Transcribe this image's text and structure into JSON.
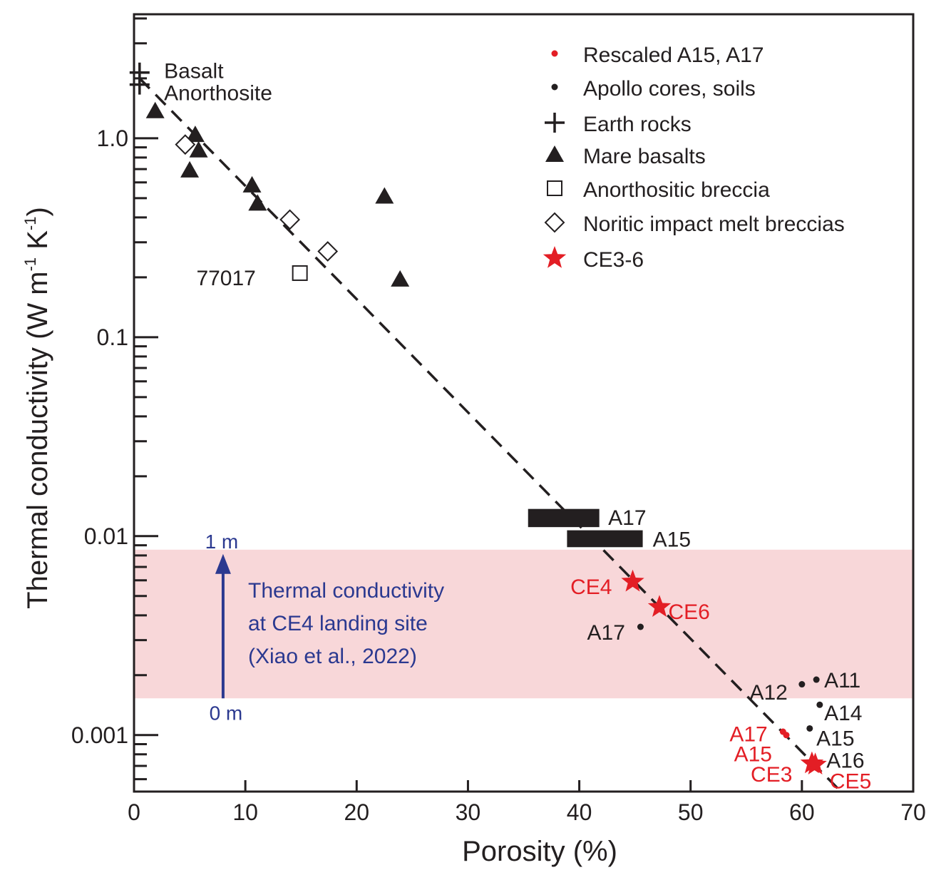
{
  "chart_data": {
    "type": "scatter",
    "xlabel": "Porosity (%)",
    "ylabel": "Thermal conductivity (W m-1 K-1)",
    "ylabel_parts": {
      "main": "Thermal conductivity (W m",
      "sup1": "-1",
      "mid": " K",
      "sup2": "-1",
      "end": ")"
    },
    "xlim": [
      0,
      70
    ],
    "ylim": [
      0.00052,
      4.2
    ],
    "yscale": "log",
    "xticks": [
      "0",
      "10",
      "20",
      "30",
      "40",
      "50",
      "60",
      "70"
    ],
    "yticks": [
      {
        "v": 1,
        "label": "1.0"
      },
      {
        "v": 0.1,
        "label": "0.1"
      },
      {
        "v": 0.01,
        "label": "0.01"
      },
      {
        "v": 0.001,
        "label": "0.001"
      }
    ],
    "legend_position": "top-right",
    "legend": [
      {
        "label": "Rescaled A15, A17",
        "marker": "dot",
        "color": "#e31e25"
      },
      {
        "label": "Apollo cores, soils",
        "marker": "dot",
        "color": "#231f20"
      },
      {
        "label": "Earth rocks",
        "marker": "plus",
        "color": "#231f20"
      },
      {
        "label": "Mare basalts",
        "marker": "triangle",
        "color": "#231f20"
      },
      {
        "label": "Anorthositic breccia",
        "marker": "square",
        "color": "#231f20"
      },
      {
        "label": "Noritic impact melt breccias",
        "marker": "diamond",
        "color": "#231f20"
      },
      {
        "label": "CE3-6",
        "marker": "star",
        "color": "#e31e25"
      }
    ],
    "series": [
      {
        "name": "Earth rocks",
        "marker": "plus",
        "points": [
          {
            "x": 0.5,
            "y": 2.14
          },
          {
            "x": 0.5,
            "y": 1.86
          }
        ]
      },
      {
        "name": "Mare basalts",
        "marker": "triangle",
        "points": [
          {
            "x": 1.9,
            "y": 1.37
          },
          {
            "x": 5.5,
            "y": 1.04
          },
          {
            "x": 5.8,
            "y": 0.87
          },
          {
            "x": 5.0,
            "y": 0.69
          },
          {
            "x": 10.6,
            "y": 0.58
          },
          {
            "x": 11.1,
            "y": 0.47
          },
          {
            "x": 22.5,
            "y": 0.51
          },
          {
            "x": 23.9,
            "y": 0.195
          }
        ]
      },
      {
        "name": "Anorthositic breccia",
        "marker": "square",
        "points": [
          {
            "x": 14.9,
            "y": 0.21
          }
        ]
      },
      {
        "name": "Noritic impact melt breccias",
        "marker": "diamond",
        "points": [
          {
            "x": 4.6,
            "y": 0.93
          },
          {
            "x": 14.0,
            "y": 0.39
          },
          {
            "x": 17.4,
            "y": 0.27
          }
        ]
      },
      {
        "name": "Apollo cores, soils",
        "marker": "dot",
        "points": [
          {
            "x": 45.5,
            "y": 0.0035
          },
          {
            "x": 60.0,
            "y": 0.0018
          },
          {
            "x": 61.3,
            "y": 0.0019
          },
          {
            "x": 61.6,
            "y": 0.00142
          },
          {
            "x": 60.7,
            "y": 0.00108
          }
        ]
      },
      {
        "name": "Rescaled A15, A17",
        "marker": "dot",
        "points": [
          {
            "x": 58.3,
            "y": 0.00104
          },
          {
            "x": 58.6,
            "y": 0.001
          }
        ]
      },
      {
        "name": "CE3-6",
        "marker": "star",
        "points": [
          {
            "x": 44.8,
            "y": 0.0059
          },
          {
            "x": 47.2,
            "y": 0.0044
          },
          {
            "x": 60.9,
            "y": 0.00072
          },
          {
            "x": 61.2,
            "y": 0.00071
          }
        ]
      }
    ],
    "bars": [
      {
        "label": "A17",
        "x0": 35.4,
        "x1": 41.8,
        "y0": 0.0111,
        "y1": 0.0137
      },
      {
        "label": "A15",
        "x0": 38.9,
        "x1": 45.7,
        "y0": 0.0088,
        "y1": 0.0107
      }
    ],
    "trend_line": [
      {
        "x": 0.5,
        "y": 2.0
      },
      {
        "x": 63.5,
        "y": 0.00052
      }
    ],
    "band": {
      "y0": 0.00153,
      "y1": 0.00855,
      "color": "#f8d7d9"
    },
    "arrow": {
      "x": 8,
      "from_label": "0 m",
      "to_label": "1 m",
      "color": "#2b3990"
    },
    "annotations": [
      {
        "text": "Basalt",
        "x": 2.7,
        "y": 2.2,
        "color": "#231f20"
      },
      {
        "text": "Anorthosite",
        "x": 2.7,
        "y": 1.7,
        "color": "#231f20"
      },
      {
        "text": "77017",
        "x": 5.6,
        "y": 0.2,
        "color": "#231f20"
      },
      {
        "text": "CE4",
        "x": 39.2,
        "y": 0.0056,
        "color": "#e31e25"
      },
      {
        "text": "CE6",
        "x": 48.0,
        "y": 0.0042,
        "color": "#e31e25"
      },
      {
        "text": "A17",
        "x": 40.7,
        "y": 0.0033,
        "color": "#231f20"
      },
      {
        "text": "A11",
        "x": 62.0,
        "y": 0.0019,
        "color": "#231f20"
      },
      {
        "text": "A12",
        "x": 55.3,
        "y": 0.00165,
        "color": "#231f20"
      },
      {
        "text": "A14",
        "x": 62.0,
        "y": 0.0013,
        "color": "#231f20"
      },
      {
        "text": "A15",
        "x": 61.3,
        "y": 0.00097,
        "color": "#231f20"
      },
      {
        "text": "A16",
        "x": 62.2,
        "y": 0.00075,
        "color": "#231f20"
      },
      {
        "text": "A17",
        "x": 53.5,
        "y": 0.00102,
        "color": "#e31e25"
      },
      {
        "text": "A15",
        "x": 53.9,
        "y": 0.00081,
        "color": "#e31e25"
      },
      {
        "text": "CE3",
        "x": 55.4,
        "y": 0.00064,
        "color": "#e31e25"
      },
      {
        "text": "CE5",
        "x": 62.5,
        "y": 0.00059,
        "color": "#e31e25"
      },
      {
        "text": "A17",
        "x": 42.6,
        "y": 0.0125,
        "color": "#231f20"
      },
      {
        "text": "A15",
        "x": 46.6,
        "y": 0.0097,
        "color": "#231f20"
      }
    ],
    "band_label": [
      "Thermal conductivity",
      "at CE4 landing site",
      "(Xiao et al., 2022)"
    ]
  }
}
